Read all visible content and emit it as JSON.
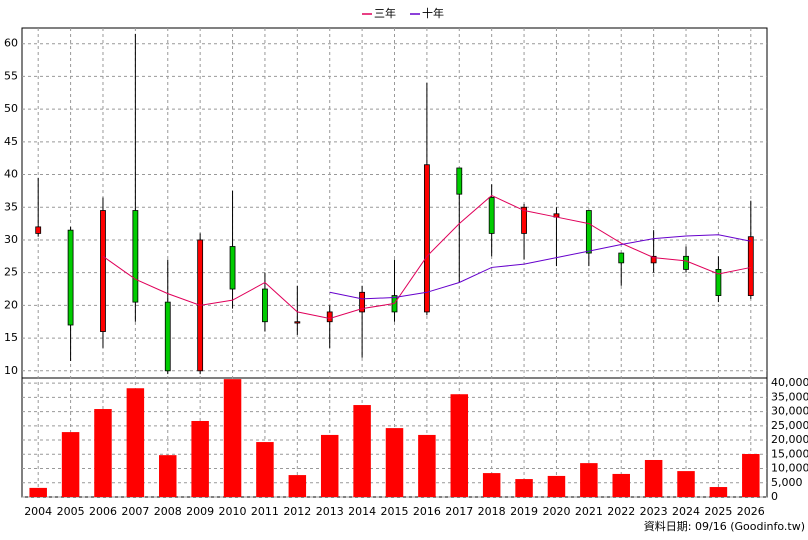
{
  "chart_data": {
    "type": "candlestick",
    "categories": [
      "2004",
      "2005",
      "2006",
      "2007",
      "2008",
      "2009",
      "2010",
      "2011",
      "2012",
      "2013",
      "2014",
      "2015",
      "2016",
      "2017",
      "2018",
      "2019",
      "2020",
      "2021",
      "2022",
      "2023",
      "2024",
      "2025",
      "2026"
    ],
    "open": [
      31,
      31.5,
      16,
      34.5,
      20.5,
      10,
      29,
      22.5,
      17.3,
      17.5,
      19,
      21.5,
      19,
      41,
      36.5,
      31,
      33.5,
      34.5,
      28,
      26.5,
      27.5,
      25.5,
      21.5
    ],
    "high": [
      39.5,
      32,
      36.5,
      61.5,
      27,
      31,
      37.5,
      25,
      23,
      20,
      23,
      27,
      54,
      41,
      38.5,
      35.5,
      35,
      34.5,
      28,
      31.5,
      29,
      27.5,
      36
    ],
    "low": [
      30.5,
      11.5,
      13.5,
      17.5,
      9.5,
      9.5,
      19.5,
      16,
      15.5,
      13.5,
      12,
      17.5,
      18.5,
      23.5,
      27.5,
      27,
      26,
      26,
      23,
      25,
      25,
      20.5,
      21
    ],
    "close": [
      32,
      17,
      34.5,
      20.5,
      10,
      30,
      22.5,
      17.5,
      17.5,
      19,
      22,
      19,
      41.5,
      37,
      31,
      35,
      34,
      28,
      26.5,
      27.5,
      25.5,
      21.5,
      30.5
    ],
    "up_color": "#ff0000",
    "down_color": "#00cc00",
    "series": [
      {
        "name": "三年",
        "color": "#e0005a",
        "values": [
          null,
          null,
          27.5,
          24,
          21.8,
          20,
          20.8,
          23.5,
          19,
          18,
          19.5,
          20.3,
          27.5,
          32.5,
          36.8,
          34.5,
          33.5,
          32.5,
          29.5,
          27.3,
          26.8,
          24.8,
          25.8
        ]
      },
      {
        "name": "十年",
        "color": "#6600cc",
        "values": [
          null,
          null,
          null,
          null,
          null,
          null,
          null,
          null,
          null,
          22,
          21,
          21.2,
          22,
          23.5,
          25.8,
          26.3,
          27.3,
          28.3,
          29.3,
          30.2,
          30.6,
          30.8,
          29.8
        ]
      }
    ],
    "ylim": [
      8.9,
      62.4
    ],
    "yticks": [
      10,
      15,
      20,
      25,
      30,
      35,
      40,
      45,
      50,
      55,
      60
    ],
    "volume": {
      "color": "#ff0000",
      "values": [
        3200,
        22800,
        30900,
        38200,
        14700,
        26700,
        41400,
        19300,
        7700,
        21800,
        32300,
        24200,
        21800,
        36100,
        8400,
        6300,
        7400,
        11900,
        8100,
        13000,
        9100,
        3500,
        15100
      ],
      "ylim": [
        0,
        41800
      ],
      "yticks": [
        0,
        {
          "value": 5000,
          "label": "5,000"
        },
        {
          "value": 10000,
          "label": "10,000"
        },
        {
          "value": 15000,
          "label": "15,000"
        },
        {
          "value": 20000,
          "label": "20,000"
        },
        {
          "value": 25000,
          "label": "25,000"
        },
        {
          "value": 30000,
          "label": "30,000"
        },
        {
          "value": 35000,
          "label": "35,000"
        },
        {
          "value": 40000,
          "label": "40,000"
        }
      ]
    },
    "grid": true,
    "footer": "資料日期: 09/16 (Goodinfo.tw)"
  }
}
